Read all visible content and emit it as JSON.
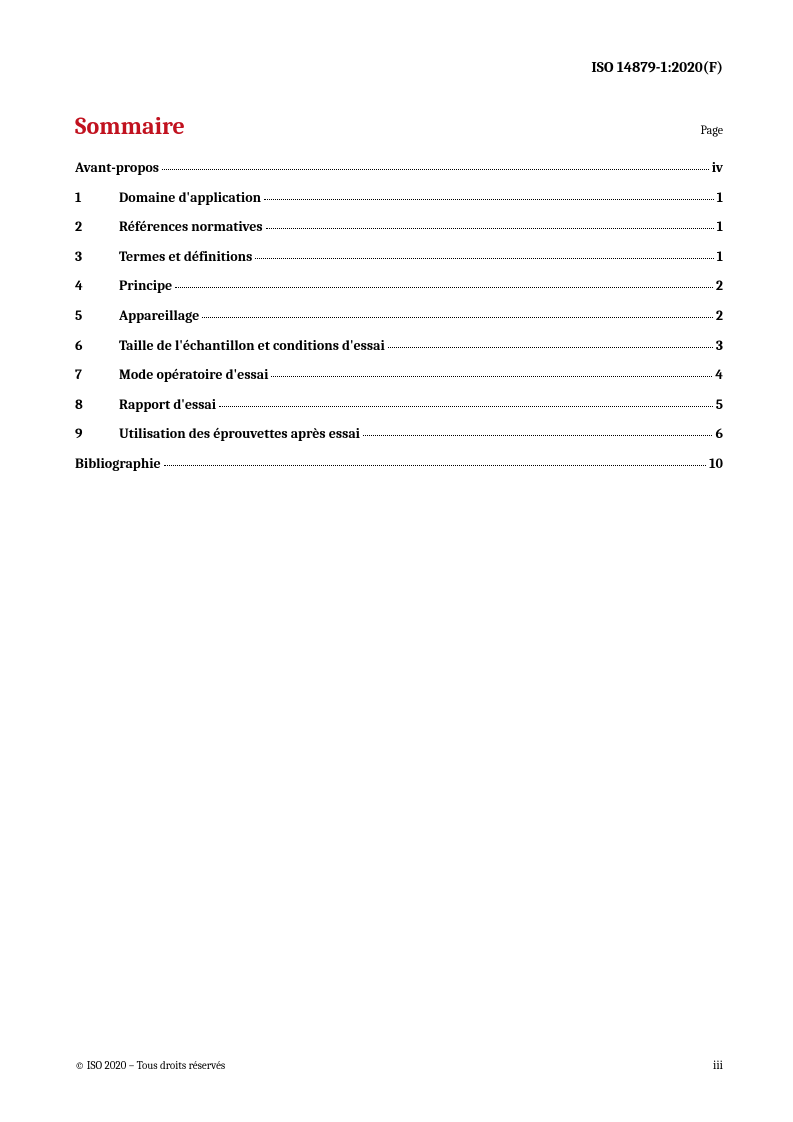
{
  "header": {
    "document_id": "ISO 14879-1:2020(F)"
  },
  "title": "Sommaire",
  "page_label": "Page",
  "toc": {
    "entries": [
      {
        "number": "",
        "title": "Avant-propos",
        "page": "iv",
        "no_number": true
      },
      {
        "number": "1",
        "title": "Domaine d'application",
        "page": "1"
      },
      {
        "number": "2",
        "title": "Références normatives",
        "page": "1"
      },
      {
        "number": "3",
        "title": "Termes et définitions",
        "page": "1"
      },
      {
        "number": "4",
        "title": "Principe",
        "page": "2"
      },
      {
        "number": "5",
        "title": "Appareillage",
        "page": "2"
      },
      {
        "number": "6",
        "title": "Taille de l'échantillon et conditions d'essai",
        "page": "3"
      },
      {
        "number": "7",
        "title": "Mode opératoire d'essai",
        "page": "4"
      },
      {
        "number": "8",
        "title": "Rapport d'essai",
        "page": "5"
      },
      {
        "number": "9",
        "title": "Utilisation des éprouvettes après essai",
        "page": "6"
      },
      {
        "number": "",
        "title": "Bibliographie",
        "page": "10",
        "no_number": true
      }
    ]
  },
  "footer": {
    "copyright": "© ISO 2020 – Tous droits réservés",
    "page_number": "iii"
  },
  "colors": {
    "title_color": "#c1121f",
    "text_color": "#000000",
    "background_color": "#ffffff"
  }
}
